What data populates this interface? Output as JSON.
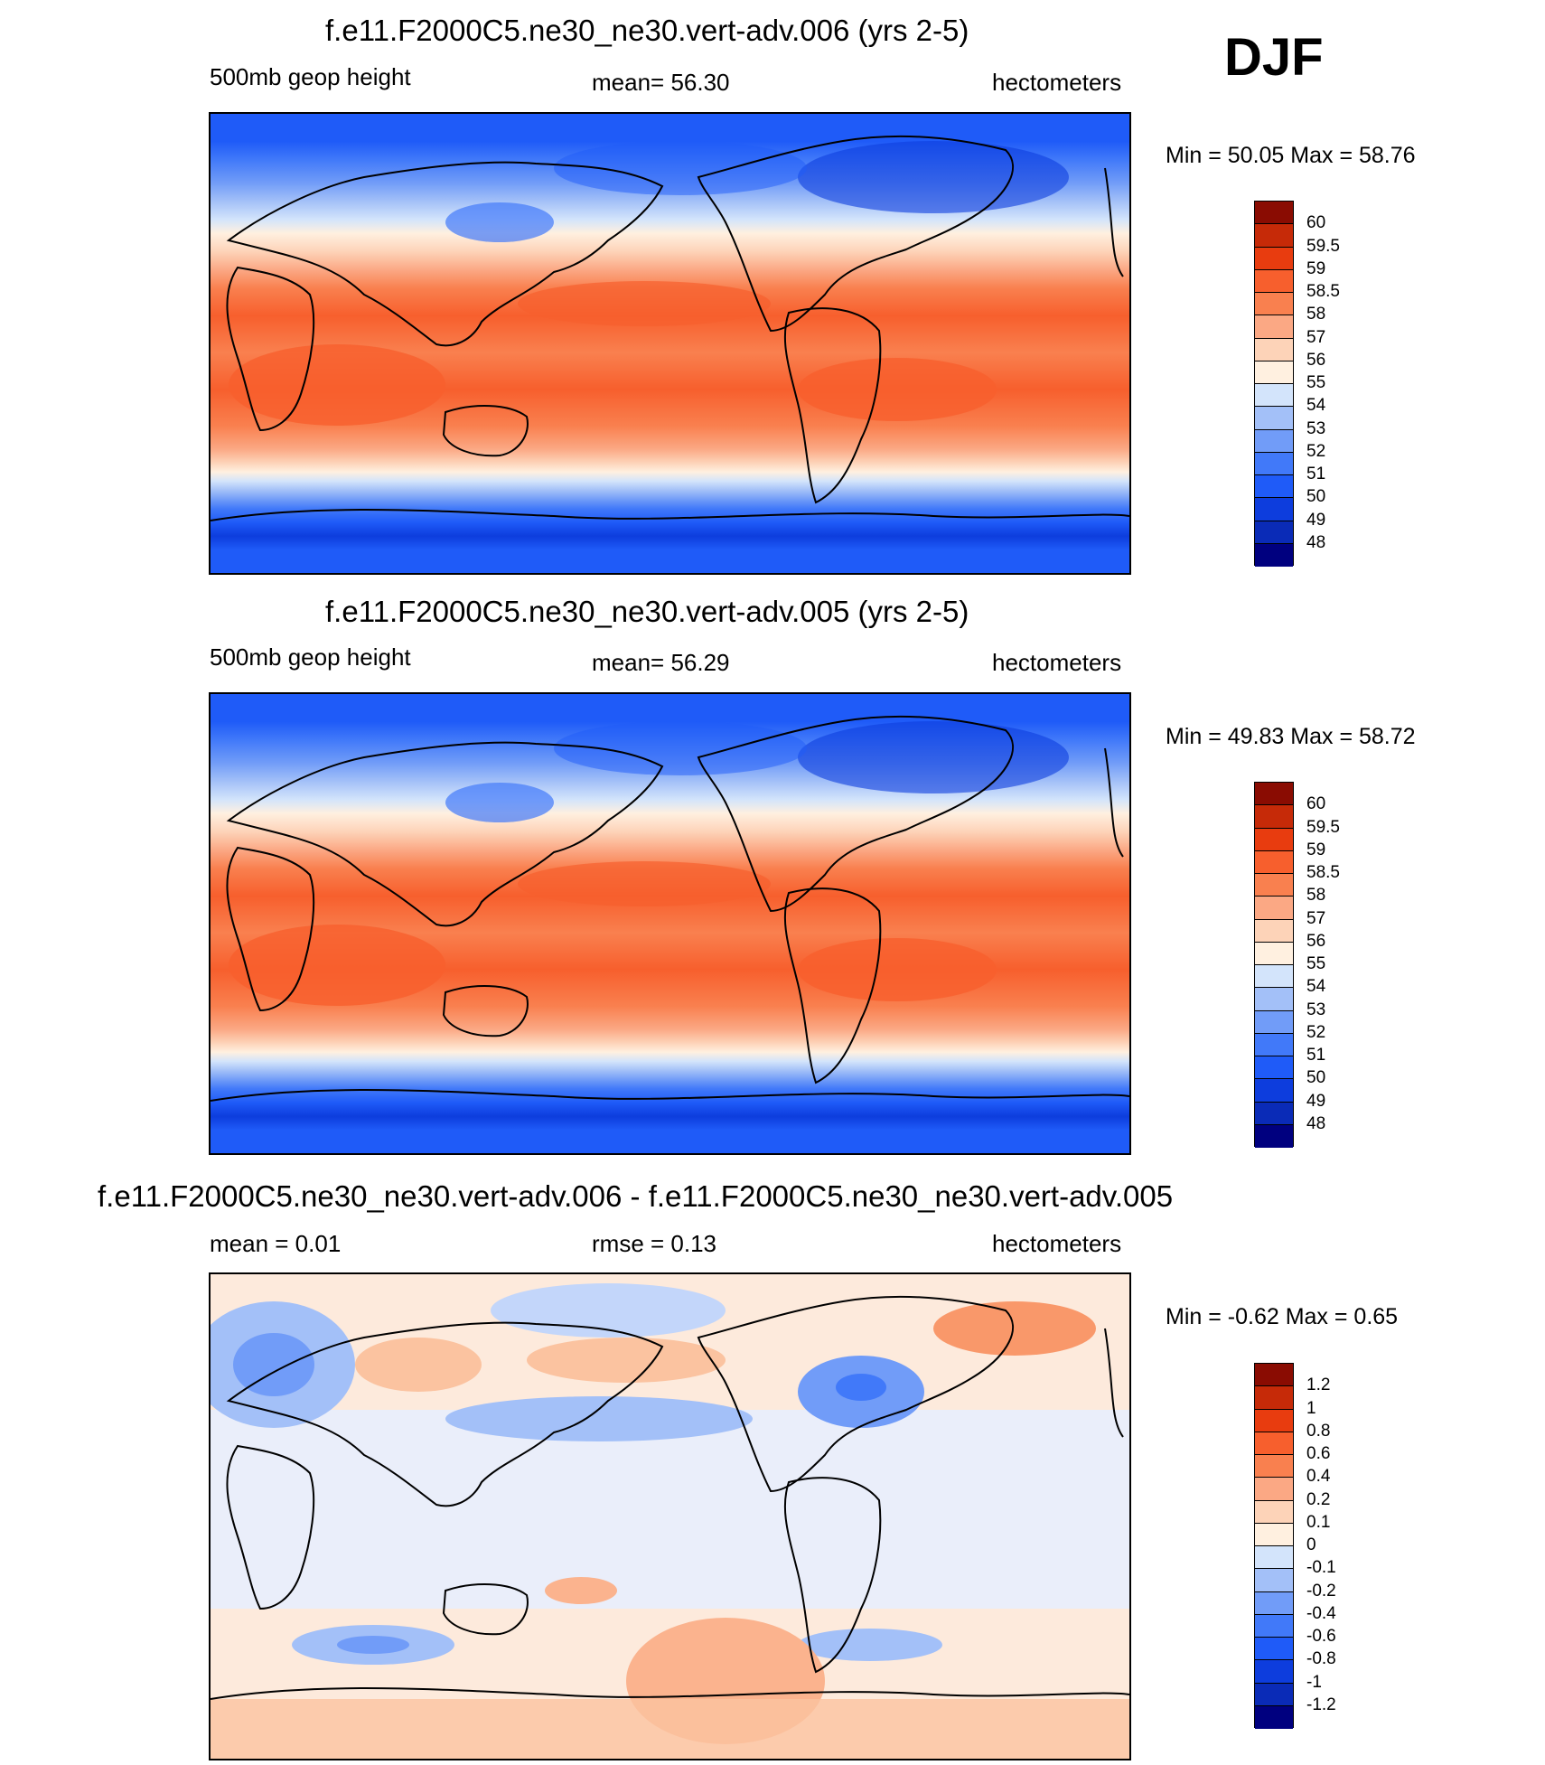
{
  "season": "DJF",
  "colors": {
    "abs_scale": [
      "#00007f",
      "#0a2bb7",
      "#0d3ddd",
      "#1f5bf8",
      "#4179f9",
      "#719cf8",
      "#a3c0f8",
      "#d3e4fb",
      "#fff0e0",
      "#fdd3b8",
      "#fba884",
      "#f9804f",
      "#f75f2d",
      "#e83c0f",
      "#c62a08",
      "#8a0c02"
    ],
    "diff_scale": [
      "#00007f",
      "#0a2bb7",
      "#0d3ddd",
      "#1f5bf8",
      "#4179f9",
      "#719cf8",
      "#a3c0f8",
      "#d3e4fb",
      "#fff0e0",
      "#fdd3b8",
      "#fba884",
      "#f9804f",
      "#f75f2d",
      "#e83c0f",
      "#c62a08",
      "#8a0c02"
    ]
  },
  "panels": [
    {
      "title": "f.e11.F2000C5.ne30_ne30.vert-adv.006 (yrs 2-5)",
      "left_label": "500mb geop height",
      "center_label": "mean=  56.30",
      "right_label": "hectometers",
      "minmax": "Min =  50.05 Max =  58.76",
      "colorbar_labels": [
        "60",
        "59.5",
        "59",
        "58.5",
        "58",
        "57",
        "56",
        "55",
        "54",
        "53",
        "52",
        "51",
        "50",
        "49",
        "48"
      ]
    },
    {
      "title": "f.e11.F2000C5.ne30_ne30.vert-adv.005 (yrs 2-5)",
      "left_label": "500mb geop height",
      "center_label": "mean=  56.29",
      "right_label": "hectometers",
      "minmax": "Min =  49.83 Max =  58.72",
      "colorbar_labels": [
        "60",
        "59.5",
        "59",
        "58.5",
        "58",
        "57",
        "56",
        "55",
        "54",
        "53",
        "52",
        "51",
        "50",
        "49",
        "48"
      ]
    },
    {
      "title": "f.e11.F2000C5.ne30_ne30.vert-adv.006 - f.e11.F2000C5.ne30_ne30.vert-adv.005",
      "left_label": "mean =   0.01",
      "center_label": "rmse =   0.13",
      "right_label": "hectometers",
      "minmax": "Min =  -0.62 Max =   0.65",
      "colorbar_labels": [
        "1.2",
        "1",
        "0.8",
        "0.6",
        "0.4",
        "0.2",
        "0.1",
        "0",
        "-0.1",
        "-0.2",
        "-0.4",
        "-0.6",
        "-0.8",
        "-1",
        "-1.2"
      ]
    }
  ],
  "chart_data": [
    {
      "type": "heatmap",
      "title": "f.e11.F2000C5.ne30_ne30.vert-adv.006 (yrs 2-5)",
      "variable": "500mb geop height",
      "units": "hectometers",
      "mean": 56.3,
      "min": 50.05,
      "max": 58.76,
      "contour_levels": [
        48,
        49,
        50,
        51,
        52,
        53,
        54,
        55,
        56,
        57,
        58,
        58.5,
        59,
        59.5,
        60
      ]
    },
    {
      "type": "heatmap",
      "title": "f.e11.F2000C5.ne30_ne30.vert-adv.005 (yrs 2-5)",
      "variable": "500mb geop height",
      "units": "hectometers",
      "mean": 56.29,
      "min": 49.83,
      "max": 58.72,
      "contour_levels": [
        48,
        49,
        50,
        51,
        52,
        53,
        54,
        55,
        56,
        57,
        58,
        58.5,
        59,
        59.5,
        60
      ]
    },
    {
      "type": "heatmap",
      "title": "f.e11.F2000C5.ne30_ne30.vert-adv.006 - f.e11.F2000C5.ne30_ne30.vert-adv.005",
      "units": "hectometers",
      "mean": 0.01,
      "rmse": 0.13,
      "min": -0.62,
      "max": 0.65,
      "contour_levels": [
        -1.2,
        -1,
        -0.8,
        -0.6,
        -0.4,
        -0.2,
        -0.1,
        0,
        0.1,
        0.2,
        0.4,
        0.6,
        0.8,
        1,
        1.2
      ]
    }
  ]
}
